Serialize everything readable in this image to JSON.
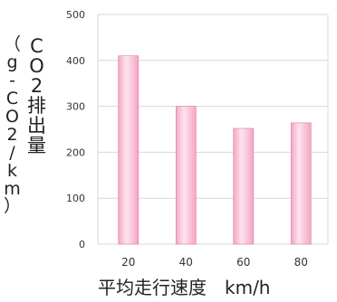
{
  "chart_data": {
    "type": "bar",
    "title": "",
    "categories": [
      "20",
      "40",
      "60",
      "80"
    ],
    "values": [
      410,
      300,
      252,
      264
    ],
    "ylim": [
      0,
      500
    ],
    "yticks": [
      "0",
      "100",
      "200",
      "300",
      "400",
      "500"
    ],
    "ylabel": "CO2排出量",
    "ylabel_unit": "（g-CO2/km）",
    "xlabel": "平均走行速度　km/h",
    "grid": true,
    "bar_color": "#f4a6c4",
    "bar_highlight": "#fde4ee",
    "bar_edge": "#e07aa2",
    "grid_color": "#d8d8d8"
  }
}
